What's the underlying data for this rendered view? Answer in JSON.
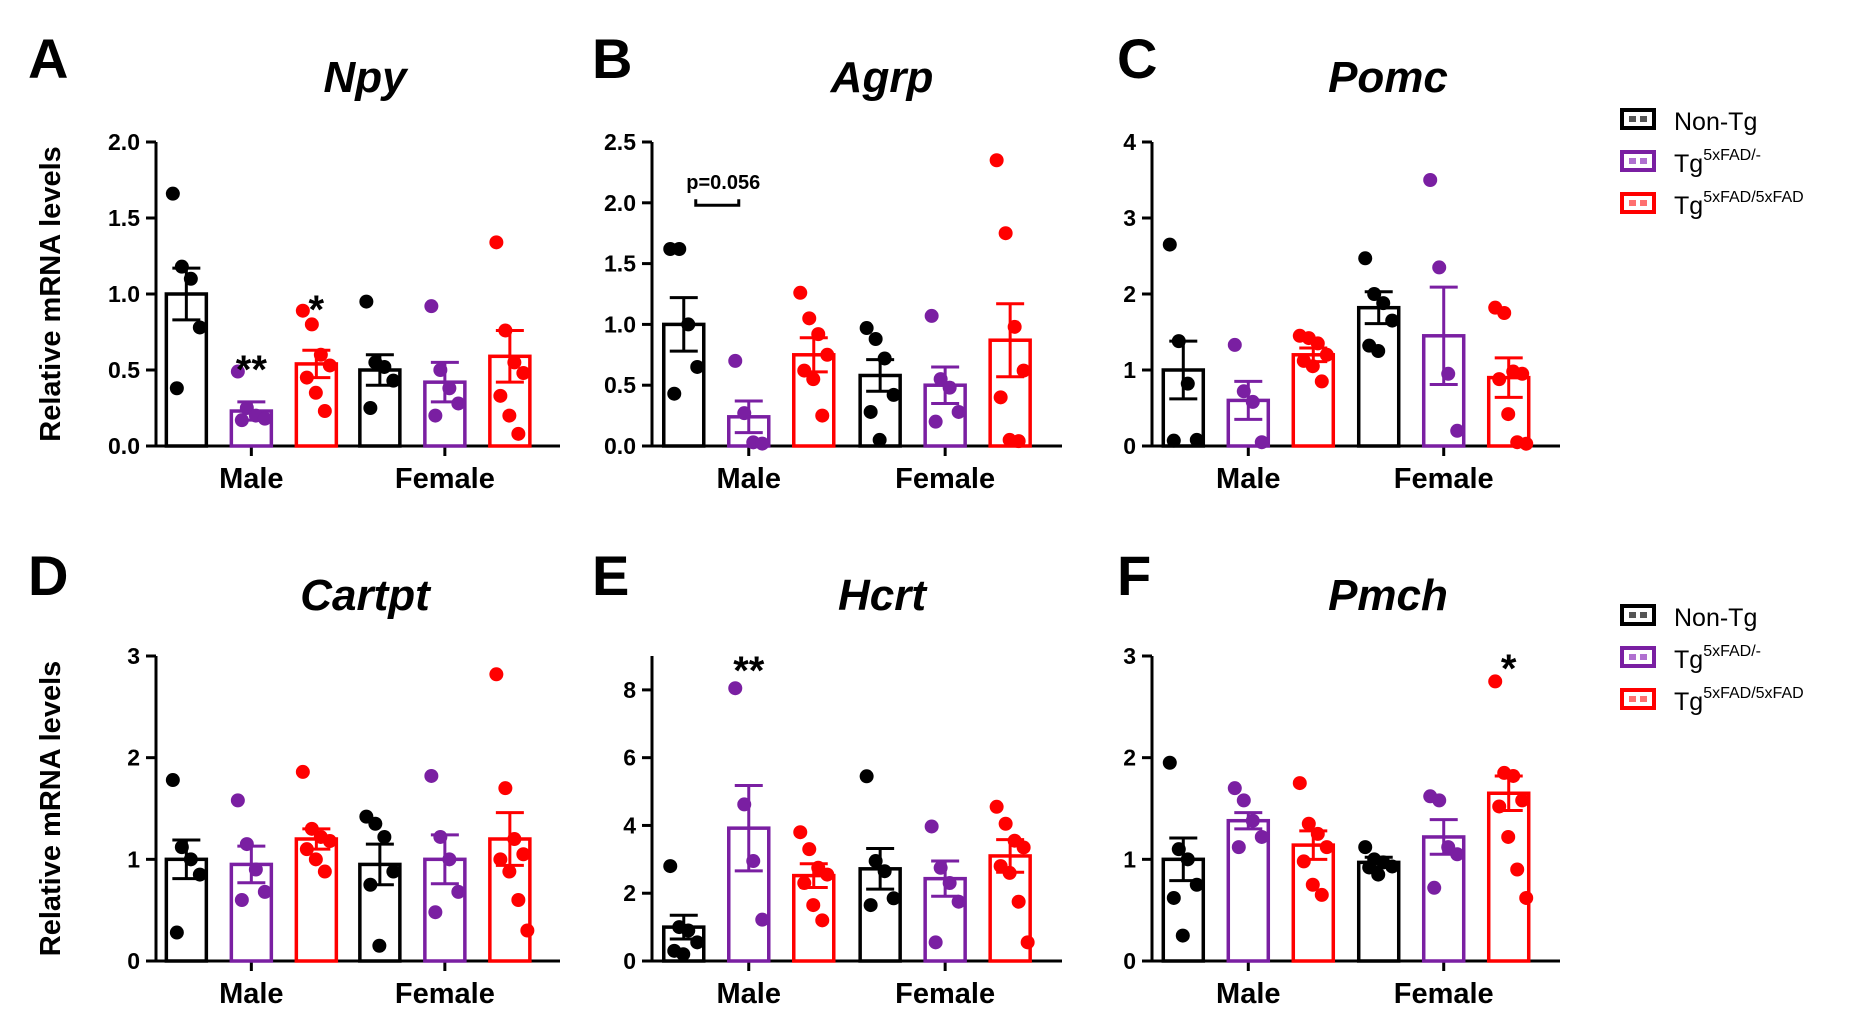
{
  "figure": {
    "y_axis_label": "Relative mRNA levels",
    "groups": [
      {
        "name": "Non-Tg",
        "legend_base": "Non-Tg",
        "legend_sup": "",
        "color": "#000000",
        "legend_inner": "#555555"
      },
      {
        "name": "Tg5xFAD/-",
        "legend_base": "Tg",
        "legend_sup": "5xFAD/-",
        "color": "#7a1fa2",
        "legend_inner": "#b070d0"
      },
      {
        "name": "Tg5xFAD/5xFAD",
        "legend_base": "Tg",
        "legend_sup": "5xFAD/5xFAD",
        "color": "#ff0000",
        "legend_inner": "#ff7070"
      }
    ]
  },
  "chart_data": [
    {
      "panel": "A",
      "type": "bar",
      "title": "Npy",
      "ylabel": "Relative mRNA levels",
      "categories": [
        "Male",
        "Female"
      ],
      "ylim": [
        0,
        2.0
      ],
      "yticks": [
        "0.0",
        "0.5",
        "1.0",
        "1.5",
        "2.0"
      ],
      "series": [
        {
          "name": "Non-Tg",
          "values": [
            1.0,
            0.5
          ],
          "sem": [
            0.17,
            0.1
          ],
          "points": [
            [
              1.66,
              1.18,
              1.1,
              0.78,
              0.38
            ],
            [
              0.95,
              0.55,
              0.52,
              0.43,
              0.25
            ]
          ]
        },
        {
          "name": "Tg5xFAD/-",
          "values": [
            0.23,
            0.42
          ],
          "sem": [
            0.06,
            0.13
          ],
          "points": [
            [
              0.49,
              0.25,
              0.2,
              0.18,
              0.17
            ],
            [
              0.92,
              0.5,
              0.38,
              0.28,
              0.2
            ]
          ]
        },
        {
          "name": "Tg5xFAD/5xFAD",
          "values": [
            0.54,
            0.59
          ],
          "sem": [
            0.09,
            0.17
          ],
          "points": [
            [
              0.89,
              0.8,
              0.6,
              0.53,
              0.45,
              0.35,
              0.23
            ],
            [
              1.34,
              0.76,
              0.55,
              0.48,
              0.33,
              0.2,
              0.08
            ]
          ]
        }
      ],
      "significance": [
        {
          "series": 1,
          "category": 0,
          "label": "**"
        },
        {
          "series": 2,
          "category": 0,
          "label": "*"
        }
      ],
      "annotations": []
    },
    {
      "panel": "B",
      "type": "bar",
      "title": "Agrp",
      "ylabel": "",
      "categories": [
        "Male",
        "Female"
      ],
      "ylim": [
        0,
        2.5
      ],
      "yticks": [
        "0.0",
        "0.5",
        "1.0",
        "1.5",
        "2.0",
        "2.5"
      ],
      "series": [
        {
          "name": "Non-Tg",
          "values": [
            1.0,
            0.58
          ],
          "sem": [
            0.22,
            0.13
          ],
          "points": [
            [
              1.62,
              1.62,
              1.0,
              0.65,
              0.43
            ],
            [
              0.97,
              0.88,
              0.72,
              0.42,
              0.28,
              0.05
            ]
          ]
        },
        {
          "name": "Tg5xFAD/-",
          "values": [
            0.24,
            0.5
          ],
          "sem": [
            0.13,
            0.15
          ],
          "points": [
            [
              0.7,
              0.27,
              0.03,
              0.02
            ],
            [
              1.07,
              0.55,
              0.48,
              0.28,
              0.2
            ]
          ]
        },
        {
          "name": "Tg5xFAD/5xFAD",
          "values": [
            0.75,
            0.87
          ],
          "sem": [
            0.14,
            0.3
          ],
          "points": [
            [
              1.26,
              1.05,
              0.92,
              0.75,
              0.62,
              0.55,
              0.25
            ],
            [
              2.35,
              1.75,
              0.98,
              0.62,
              0.4,
              0.05,
              0.04
            ]
          ]
        }
      ],
      "significance": [],
      "annotations": [
        {
          "text": "p=0.056",
          "series_from": 0,
          "series_to": 1,
          "category": 0
        }
      ]
    },
    {
      "panel": "C",
      "type": "bar",
      "title": "Pomc",
      "ylabel": "",
      "categories": [
        "Male",
        "Female"
      ],
      "ylim": [
        0,
        4
      ],
      "yticks": [
        "0",
        "1",
        "2",
        "3",
        "4"
      ],
      "series": [
        {
          "name": "Non-Tg",
          "values": [
            1.0,
            1.82
          ],
          "sem": [
            0.38,
            0.21
          ],
          "points": [
            [
              2.65,
              1.38,
              0.82,
              0.08,
              0.07
            ],
            [
              2.47,
              2.0,
              1.88,
              1.65,
              1.32,
              1.25
            ]
          ]
        },
        {
          "name": "Tg5xFAD/-",
          "values": [
            0.6,
            1.45
          ],
          "sem": [
            0.25,
            0.64
          ],
          "points": [
            [
              1.33,
              0.72,
              0.58,
              0.05
            ],
            [
              3.5,
              2.35,
              0.95,
              0.2
            ]
          ]
        },
        {
          "name": "Tg5xFAD/5xFAD",
          "values": [
            1.2,
            0.9
          ],
          "sem": [
            0.09,
            0.26
          ],
          "points": [
            [
              1.45,
              1.42,
              1.35,
              1.2,
              1.12,
              1.05,
              0.85
            ],
            [
              1.82,
              1.75,
              0.98,
              0.95,
              0.88,
              0.42,
              0.05,
              0.03
            ]
          ]
        }
      ],
      "significance": [],
      "annotations": []
    },
    {
      "panel": "D",
      "type": "bar",
      "title": "Cartpt",
      "ylabel": "Relative mRNA levels",
      "categories": [
        "Male",
        "Female"
      ],
      "ylim": [
        0,
        3
      ],
      "yticks": [
        "0",
        "1",
        "2",
        "3"
      ],
      "series": [
        {
          "name": "Non-Tg",
          "values": [
            1.0,
            0.95
          ],
          "sem": [
            0.19,
            0.2
          ],
          "points": [
            [
              1.78,
              1.12,
              1.0,
              0.85,
              0.28
            ],
            [
              1.42,
              1.35,
              1.22,
              0.88,
              0.75,
              0.15
            ]
          ]
        },
        {
          "name": "Tg5xFAD/-",
          "values": [
            0.95,
            1.0
          ],
          "sem": [
            0.18,
            0.24
          ],
          "points": [
            [
              1.58,
              1.15,
              0.9,
              0.68,
              0.6
            ],
            [
              1.82,
              1.22,
              1.0,
              0.68,
              0.48
            ]
          ]
        },
        {
          "name": "Tg5xFAD/5xFAD",
          "values": [
            1.2,
            1.2
          ],
          "sem": [
            0.1,
            0.26
          ],
          "points": [
            [
              1.86,
              1.3,
              1.22,
              1.18,
              1.1,
              1.0,
              0.88
            ],
            [
              2.82,
              1.7,
              1.2,
              1.05,
              1.0,
              0.88,
              0.6,
              0.3
            ]
          ]
        }
      ],
      "significance": [],
      "annotations": []
    },
    {
      "panel": "E",
      "type": "bar",
      "title": "Hcrt",
      "ylabel": "",
      "categories": [
        "Male",
        "Female"
      ],
      "ylim": [
        0,
        9
      ],
      "yticks": [
        "0",
        "2",
        "4",
        "6",
        "8"
      ],
      "series": [
        {
          "name": "Non-Tg",
          "values": [
            1.0,
            2.72
          ],
          "sem": [
            0.35,
            0.6
          ],
          "points": [
            [
              2.8,
              1.0,
              0.9,
              0.55,
              0.3,
              0.2
            ],
            [
              5.45,
              2.95,
              2.65,
              1.85,
              1.65
            ]
          ]
        },
        {
          "name": "Tg5xFAD/-",
          "values": [
            3.92,
            2.43
          ],
          "sem": [
            1.26,
            0.52
          ],
          "points": [
            [
              8.05,
              4.62,
              2.95,
              1.22
            ],
            [
              3.97,
              2.75,
              2.3,
              1.75,
              0.55
            ]
          ]
        },
        {
          "name": "Tg5xFAD/5xFAD",
          "values": [
            2.52,
            3.1
          ],
          "sem": [
            0.35,
            0.48
          ],
          "points": [
            [
              3.8,
              3.3,
              2.75,
              2.55,
              2.3,
              1.65,
              1.2
            ],
            [
              4.55,
              4.05,
              3.55,
              3.35,
              2.8,
              2.6,
              1.75,
              0.55
            ]
          ]
        }
      ],
      "significance": [
        {
          "series": 1,
          "category": 0,
          "label": "**"
        }
      ],
      "annotations": []
    },
    {
      "panel": "F",
      "type": "bar",
      "title": "Pmch",
      "ylabel": "",
      "categories": [
        "Male",
        "Female"
      ],
      "ylim": [
        0,
        3
      ],
      "yticks": [
        "0",
        "1",
        "2",
        "3"
      ],
      "series": [
        {
          "name": "Non-Tg",
          "values": [
            1.0,
            0.97
          ],
          "sem": [
            0.21,
            0.05
          ],
          "points": [
            [
              1.95,
              1.1,
              1.0,
              0.75,
              0.62,
              0.25
            ],
            [
              1.12,
              1.0,
              0.97,
              0.93,
              0.92,
              0.85
            ]
          ]
        },
        {
          "name": "Tg5xFAD/-",
          "values": [
            1.38,
            1.22
          ],
          "sem": [
            0.08,
            0.17
          ],
          "points": [
            [
              1.7,
              1.58,
              1.38,
              1.22,
              1.12
            ],
            [
              1.62,
              1.58,
              1.12,
              1.05,
              0.72
            ]
          ]
        },
        {
          "name": "Tg5xFAD/5xFAD",
          "values": [
            1.14,
            1.65
          ],
          "sem": [
            0.14,
            0.17
          ],
          "points": [
            [
              1.75,
              1.35,
              1.25,
              1.12,
              0.98,
              0.75,
              0.65
            ],
            [
              2.75,
              1.85,
              1.82,
              1.58,
              1.52,
              1.22,
              0.9,
              0.62
            ]
          ]
        }
      ],
      "significance": [
        {
          "series": 2,
          "category": 1,
          "label": "*"
        }
      ],
      "annotations": []
    }
  ]
}
